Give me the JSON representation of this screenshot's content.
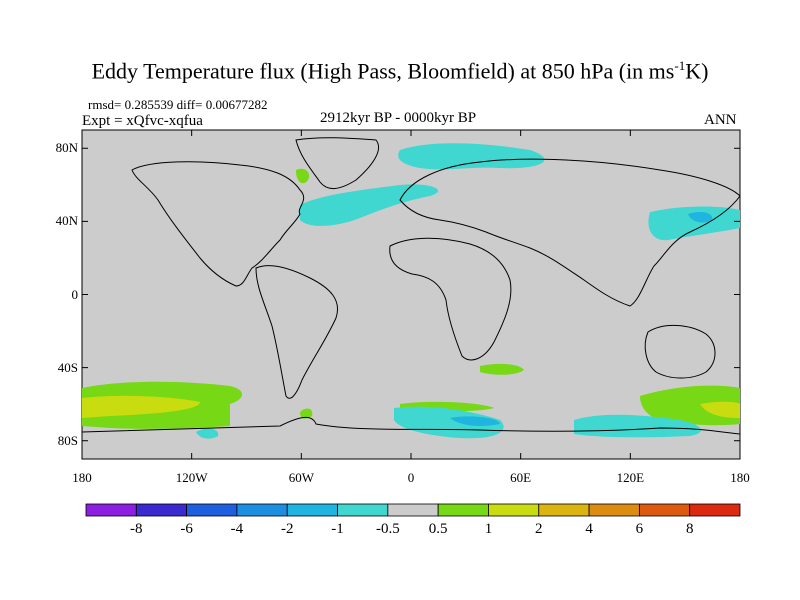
{
  "title": {
    "main": "Eddy Temperature flux (High Pass, Bloomfield) at 850 hPa (in ms",
    "sup": "-1",
    "tail": "K)"
  },
  "stats": "rmsd= 0.285539 diff= 0.00677282",
  "expt": "Expt = xQfvc-xqfua",
  "period": "2912kyr BP - 0000kyr BP",
  "season": "ANN",
  "axes": {
    "lat_ticks": [
      {
        "lat": 80,
        "label": "80N"
      },
      {
        "lat": 40,
        "label": "40N"
      },
      {
        "lat": 0,
        "label": "0"
      },
      {
        "lat": -40,
        "label": "40S"
      },
      {
        "lat": -80,
        "label": "80S"
      }
    ],
    "lon_ticks": [
      {
        "lon": -180,
        "label": "180"
      },
      {
        "lon": -120,
        "label": "120W"
      },
      {
        "lon": -60,
        "label": "60W"
      },
      {
        "lon": 0,
        "label": "0"
      },
      {
        "lon": 60,
        "label": "60E"
      },
      {
        "lon": 120,
        "label": "120E"
      },
      {
        "lon": 180,
        "label": "180"
      }
    ]
  },
  "colorbar": {
    "colors": [
      "#8c1fe0",
      "#3a2ad0",
      "#1e5fe0",
      "#1e8fe0",
      "#1fb5e0",
      "#3fd7d0",
      "#cccccc",
      "#77d815",
      "#c8dc10",
      "#dcb410",
      "#dc8c10",
      "#dc5a10",
      "#dc2a10"
    ],
    "labels": [
      "-8",
      "-6",
      "-4",
      "-2",
      "-1",
      "-0.5",
      "0.5",
      "1",
      "2",
      "4",
      "6",
      "8"
    ]
  },
  "colors": {
    "land_ocean": "#cccccc",
    "cyan": "#3fd7d0",
    "blue_light": "#1fb5e0",
    "green": "#77d815",
    "yellow": "#c8dc10"
  }
}
